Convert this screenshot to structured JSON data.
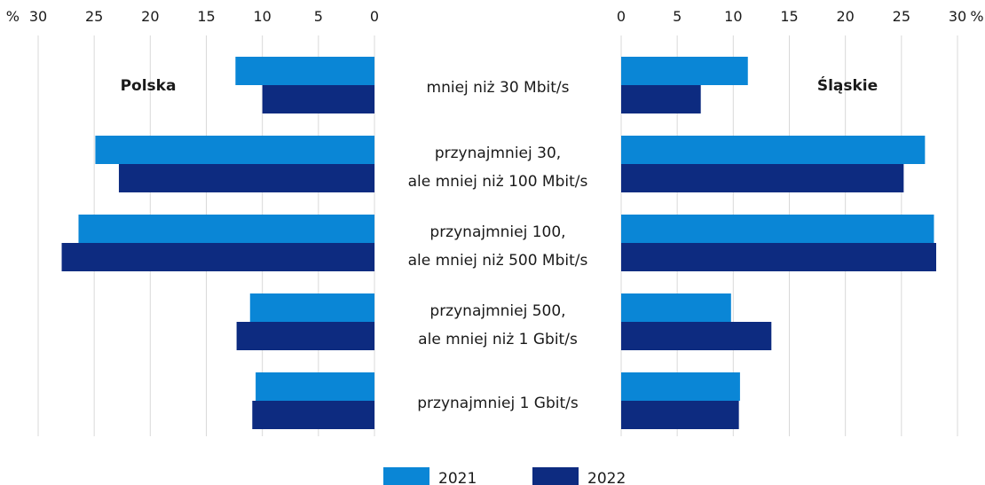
{
  "chart_data": {
    "type": "bar",
    "orientation": "horizontal-butterfly",
    "categories": [
      [
        "mniej niż 30 Mbit/s"
      ],
      [
        "przynajmniej 30,",
        "ale mniej niż 100 Mbit/s"
      ],
      [
        "przynajmniej 100,",
        "ale mniej niż 500 Mbit/s"
      ],
      [
        "przynajmniej 500,",
        "ale mniej niż 1 Gbit/s"
      ],
      [
        "przynajmniej 1 Gbit/s"
      ]
    ],
    "unit_label_left": "%",
    "unit_label_right": "%",
    "xlim": [
      0,
      30
    ],
    "ticks": [
      "0",
      "5",
      "10",
      "15",
      "20",
      "25",
      "30"
    ],
    "grid": true,
    "legend_position": "bottom-center",
    "panels": [
      {
        "title": "Polska",
        "side": "left",
        "series": [
          {
            "name": "2021",
            "color": "#0a86d6",
            "values": [
              12.4,
              24.9,
              26.4,
              11.1,
              10.6
            ]
          },
          {
            "name": "2022",
            "color": "#0d2b80",
            "values": [
              10.0,
              22.8,
              27.9,
              12.3,
              10.9
            ]
          }
        ]
      },
      {
        "title": "Śląskie",
        "side": "right",
        "series": [
          {
            "name": "2021",
            "color": "#0a86d6",
            "values": [
              11.3,
              27.1,
              27.9,
              9.8,
              10.6
            ]
          },
          {
            "name": "2022",
            "color": "#0d2b80",
            "values": [
              7.1,
              25.2,
              28.1,
              13.4,
              10.5
            ]
          }
        ]
      }
    ],
    "legend": [
      {
        "label": "2021",
        "color": "#0a86d6"
      },
      {
        "label": "2022",
        "color": "#0d2b80"
      }
    ]
  }
}
